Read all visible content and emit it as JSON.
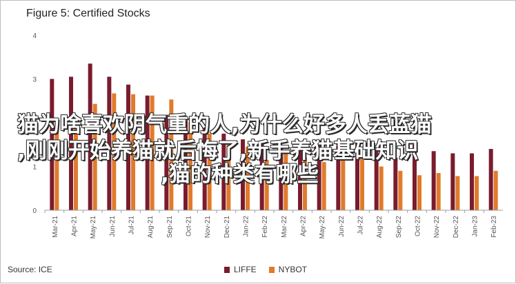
{
  "chart_data": {
    "type": "bar",
    "title": "Figure 5: Certified Stocks",
    "source": "Source: ICE",
    "categories": [
      "Mar-21",
      "Apr-21",
      "May-21",
      "Jun-21",
      "Jul-21",
      "Aug-21",
      "Sep-21",
      "Oct-21",
      "Nov-21",
      "Dec-21",
      "Jan-22",
      "Feb-22",
      "Mar-22",
      "Apr-22",
      "May-22",
      "Jun-22",
      "Jul-22",
      "Aug-22",
      "Sep-22",
      "Oct-22",
      "Nov-22",
      "Dec-22",
      "Jan-23",
      "Feb-23"
    ],
    "series": [
      {
        "name": "LIFFE",
        "color": "#7a1c2e",
        "values": [
          3.0,
          3.05,
          3.35,
          3.05,
          2.87,
          2.62,
          2.18,
          2.05,
          1.95,
          1.75,
          1.62,
          1.55,
          1.5,
          1.55,
          1.6,
          1.48,
          1.55,
          1.38,
          1.2,
          1.5,
          1.35,
          1.3,
          1.3,
          1.4
        ]
      },
      {
        "name": "NYBOT",
        "color": "#e07b2c",
        "values": [
          1.97,
          2.15,
          2.43,
          2.67,
          2.65,
          2.62,
          2.53,
          2.02,
          1.75,
          1.6,
          1.45,
          1.15,
          1.35,
          1.2,
          1.1,
          1.25,
          1.3,
          1.0,
          0.9,
          0.8,
          0.85,
          0.78,
          0.78,
          0.9
        ]
      }
    ],
    "ylim": [
      0,
      4
    ],
    "yticks": [
      "0",
      "1",
      "2",
      "3",
      "4"
    ],
    "ylabel": "",
    "xlabel": "",
    "grid": false,
    "legend_position": "bottom-center"
  },
  "overlay_text": {
    "line1": "猫为啥喜欢阴气重的人,为什么好多人丢蓝猫",
    "line2": ",刚刚开始养猫就后悔了,新手养猫基础知识",
    "line3": ",猫的种类有哪些"
  }
}
